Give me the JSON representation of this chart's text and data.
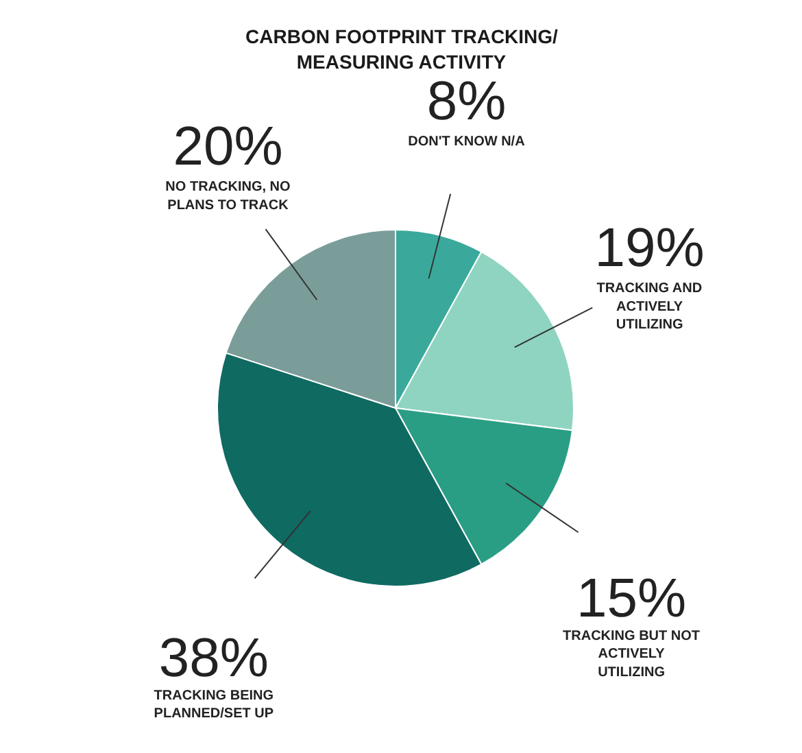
{
  "chart_data": {
    "type": "pie",
    "title": "CARBON FOOTPRINT TRACKING/ MEASURING ACTIVITY",
    "categories": [
      "DON'T KNOW N/A",
      "TRACKING AND ACTIVELY UTILIZING",
      "TRACKING BUT NOT ACTIVELY UTILIZING",
      "TRACKING BEING PLANNED/SET UP",
      "NO TRACKING, NO PLANS TO TRACK"
    ],
    "values": [
      8,
      19,
      15,
      38,
      20
    ],
    "value_labels": [
      "8%",
      "19%",
      "15%",
      "38%",
      "20%"
    ],
    "colors": [
      "#3aa99b",
      "#8fd4c1",
      "#2a9e85",
      "#0f6a62",
      "#7b9d99"
    ]
  }
}
